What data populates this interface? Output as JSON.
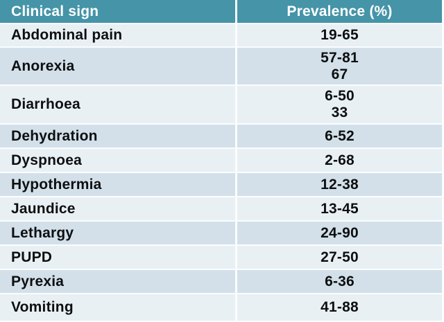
{
  "table": {
    "header": {
      "sign_label": "Clinical sign",
      "prevalence_label": "Prevalence (%)"
    },
    "rows": [
      {
        "sign": "Abdominal pain",
        "prevalence": [
          "19-65"
        ]
      },
      {
        "sign": "Anorexia",
        "prevalence": [
          "57-81",
          "67"
        ]
      },
      {
        "sign": "Diarrhoea",
        "prevalence": [
          "6-50",
          "33"
        ]
      },
      {
        "sign": "Dehydration",
        "prevalence": [
          "6-52"
        ]
      },
      {
        "sign": "Dyspnoea",
        "prevalence": [
          "2-68"
        ]
      },
      {
        "sign": "Hypothermia",
        "prevalence": [
          "12-38"
        ]
      },
      {
        "sign": "Jaundice",
        "prevalence": [
          "13-45"
        ]
      },
      {
        "sign": "Lethargy",
        "prevalence": [
          "24-90"
        ]
      },
      {
        "sign": "PUPD",
        "prevalence": [
          "27-50"
        ]
      },
      {
        "sign": "Pyrexia",
        "prevalence": [
          "6-36"
        ]
      },
      {
        "sign": "Vomiting",
        "prevalence": [
          "41-88"
        ]
      }
    ]
  },
  "colors": {
    "header_bg": "#4594a8",
    "header_text": "#ffffff",
    "row_light": "#e9f0f4",
    "row_dark": "#d3e0e9",
    "grid_line": "#fbfdfe",
    "text": "#0d0f10"
  },
  "chart_data": {
    "type": "table",
    "title": "",
    "columns": [
      "Clinical sign",
      "Prevalence (%)"
    ],
    "rows": [
      [
        "Abdominal pain",
        "19-65"
      ],
      [
        "Anorexia",
        "57-81; 67"
      ],
      [
        "Diarrhoea",
        "6-50; 33"
      ],
      [
        "Dehydration",
        "6-52"
      ],
      [
        "Dyspnoea",
        "2-68"
      ],
      [
        "Hypothermia",
        "12-38"
      ],
      [
        "Jaundice",
        "13-45"
      ],
      [
        "Lethargy",
        "24-90"
      ],
      [
        "PUPD",
        "27-50"
      ],
      [
        "Pyrexia",
        "6-36"
      ],
      [
        "Vomiting",
        "41-88"
      ]
    ]
  }
}
